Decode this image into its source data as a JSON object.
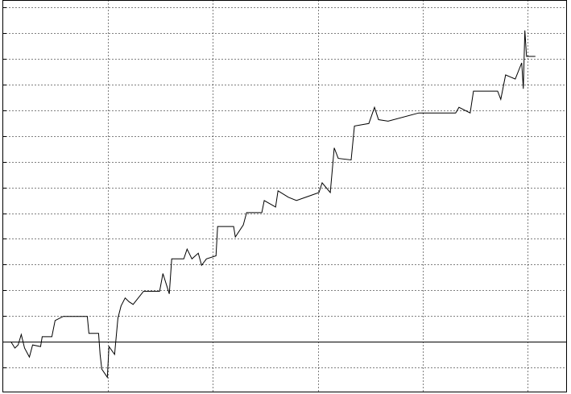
{
  "chart_data": {
    "type": "line",
    "color": "#000000",
    "grid": true,
    "xlim": [
      0,
      5.37
    ],
    "xticks": [
      1,
      2,
      3,
      4,
      5
    ],
    "ylim": [
      -1.96,
      13.28
    ],
    "yticks": [
      -1,
      0,
      1,
      2,
      3,
      4,
      5,
      6,
      7,
      8,
      9,
      10,
      11,
      12,
      13
    ],
    "x": [
      0.077,
      0.115,
      0.146,
      0.176,
      0.207,
      0.253,
      0.284,
      0.36,
      0.375,
      0.467,
      0.498,
      0.575,
      0.805,
      0.82,
      0.912,
      0.927,
      0.943,
      0.996,
      1.011,
      1.065,
      1.096,
      1.126,
      1.165,
      1.203,
      1.241,
      1.341,
      1.494,
      1.525,
      1.586,
      1.609,
      1.724,
      1.755,
      1.801,
      1.862,
      1.893,
      1.939,
      2.031,
      2.046,
      2.199,
      2.215,
      2.291,
      2.322,
      2.467,
      2.49,
      2.598,
      2.621,
      2.72,
      2.797,
      3.011,
      3.042,
      3.119,
      3.157,
      3.195,
      3.318,
      3.349,
      3.487,
      3.54,
      3.579,
      3.67,
      3.962,
      4.314,
      4.345,
      4.452,
      4.483,
      4.713,
      4.743,
      4.789,
      4.881,
      4.943,
      4.958,
      4.973,
      4.989,
      5.073
    ],
    "values": [
      0,
      -0.25,
      -0.13,
      0.28,
      -0.25,
      -0.6,
      -0.13,
      -0.19,
      0.19,
      0.19,
      0.82,
      0.98,
      0.98,
      0.32,
      0.32,
      -0.5,
      -1.07,
      -1.39,
      -0.19,
      -0.5,
      0.91,
      1.39,
      1.7,
      1.55,
      1.45,
      1.96,
      1.96,
      2.65,
      1.86,
      3.22,
      3.22,
      3.6,
      3.22,
      3.44,
      2.97,
      3.22,
      3.34,
      4.48,
      4.48,
      4.07,
      4.54,
      5.02,
      5.02,
      5.49,
      5.24,
      5.87,
      5.62,
      5.49,
      5.8,
      6.18,
      5.8,
      7.54,
      7.13,
      7.07,
      8.39,
      8.49,
      9.12,
      8.64,
      8.58,
      8.9,
      8.9,
      9.12,
      8.9,
      9.75,
      9.75,
      9.43,
      10.38,
      10.22,
      10.85,
      9.84,
      12.11,
      11.1,
      11.1
    ]
  }
}
